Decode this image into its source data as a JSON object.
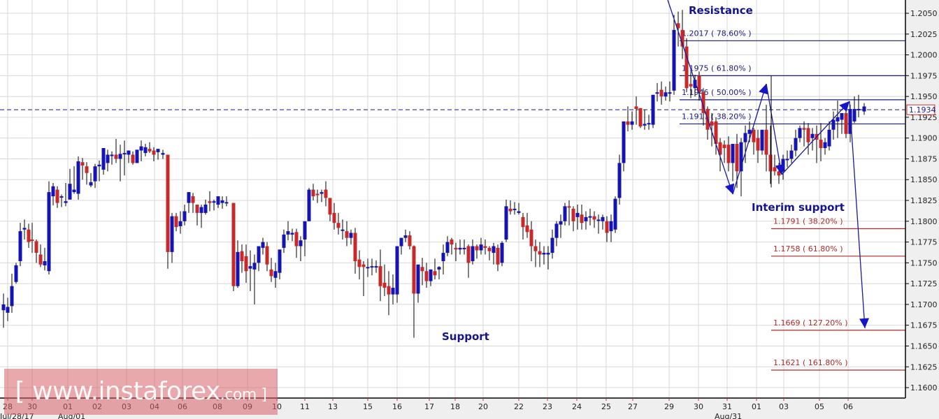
{
  "chart_data": {
    "type": "candlestick",
    "title": "",
    "instrument_hint": "Daily candlestick chart with Fibonacci retracement/extension levels",
    "xlabel": "",
    "ylabel": "",
    "ylim": [
      1.16,
      1.205
    ],
    "yticks": [
      "1.2050",
      "1.2025",
      "1.2000",
      "1.1975",
      "1.1950",
      "1.1925",
      "1.1900",
      "1.1875",
      "1.1850",
      "1.1825",
      "1.1800",
      "1.1775",
      "1.1750",
      "1.1725",
      "1.1700",
      "1.1675",
      "1.1650",
      "1.1625",
      "1.1600"
    ],
    "xticks": [
      {
        "label": "28",
        "x": 11
      },
      {
        "label": "30",
        "x": 46
      },
      {
        "label": "01",
        "x": 97
      },
      {
        "label": "02",
        "x": 139
      },
      {
        "label": "03",
        "x": 181
      },
      {
        "label": "04",
        "x": 221
      },
      {
        "label": "06",
        "x": 261
      },
      {
        "label": "08",
        "x": 311
      },
      {
        "label": "09",
        "x": 354
      },
      {
        "label": "10",
        "x": 396
      },
      {
        "label": "11",
        "x": 436
      },
      {
        "label": "13",
        "x": 476
      },
      {
        "label": "15",
        "x": 526
      },
      {
        "label": "16",
        "x": 568
      },
      {
        "label": "17",
        "x": 614
      },
      {
        "label": "18",
        "x": 651
      },
      {
        "label": "20",
        "x": 691
      },
      {
        "label": "22",
        "x": 742
      },
      {
        "label": "23",
        "x": 783
      },
      {
        "label": "24",
        "x": 825
      },
      {
        "label": "25",
        "x": 867
      },
      {
        "label": "27",
        "x": 905
      },
      {
        "label": "29",
        "x": 957
      },
      {
        "label": "30",
        "x": 999
      },
      {
        "label": "31",
        "x": 1040
      },
      {
        "label": "01",
        "x": 1082
      },
      {
        "label": "03",
        "x": 1121
      },
      {
        "label": "05",
        "x": 1172
      },
      {
        "label": "06",
        "x": 1213
      }
    ],
    "month_labels": [
      {
        "label": "Jul/28/17",
        "x": 0
      },
      {
        "label": "Aug/01",
        "x": 83
      },
      {
        "label": "Aug/31",
        "x": 1022
      }
    ],
    "current_price": {
      "value": "1.1934",
      "price": 1.1934
    },
    "fib_levels_resistance": [
      {
        "price": 1.2017,
        "label": "1.2017 ( 78.60% )"
      },
      {
        "price": 1.1975,
        "label": "1.1975 ( 61.80% )"
      },
      {
        "price": 1.1946,
        "label": "1.1946 ( 50.00% )"
      },
      {
        "price": 1.1917,
        "label": "1.1917 ( 38.20% )"
      }
    ],
    "fib_levels_support": [
      {
        "price": 1.1791,
        "label": "1.1791 ( 38.20% )"
      },
      {
        "price": 1.1758,
        "label": "1.1758 ( 61.80% )"
      },
      {
        "price": 1.1669,
        "label": "1.1669 ( 127.20% )"
      },
      {
        "price": 1.1621,
        "label": "1.1621 ( 161.80% )"
      }
    ],
    "annotations": [
      {
        "text": "Resistance",
        "x": 985,
        "y": 20
      },
      {
        "text": "Interim support",
        "x": 1075,
        "y": 302
      },
      {
        "text": "Support",
        "x": 632,
        "y": 487
      }
    ],
    "candles": [
      [
        5,
        1.1693,
        1.1713,
        1.17,
        1.1672
      ],
      [
        11,
        1.169,
        1.1708,
        1.1697,
        1.168
      ],
      [
        17,
        1.1698,
        1.1737,
        1.1722,
        1.169
      ],
      [
        23,
        1.1727,
        1.175,
        1.1747,
        1.1725
      ],
      [
        29,
        1.1752,
        1.1798,
        1.1788,
        1.1746
      ],
      [
        35,
        1.179,
        1.1802,
        1.1792,
        1.1778
      ],
      [
        41,
        1.179,
        1.1797,
        1.1775,
        1.1768
      ],
      [
        46,
        1.1778,
        1.1798,
        1.1777,
        1.1762
      ],
      [
        52,
        1.1776,
        1.1778,
        1.1762,
        1.175
      ],
      [
        58,
        1.176,
        1.1772,
        1.1748,
        1.1745
      ],
      [
        64,
        1.1747,
        1.1768,
        1.1752,
        1.1741
      ],
      [
        70,
        1.174,
        1.1848,
        1.1835,
        1.1736
      ],
      [
        76,
        1.183,
        1.1846,
        1.1842,
        1.1819
      ],
      [
        82,
        1.1838,
        1.1842,
        1.1822,
        1.1816
      ],
      [
        88,
        1.183,
        1.1832,
        1.183,
        1.1817
      ],
      [
        94,
        1.1822,
        1.1846,
        1.1824,
        1.1818
      ],
      [
        100,
        1.1826,
        1.1863,
        1.1845,
        1.1836
      ],
      [
        106,
        1.1835,
        1.1866,
        1.1838,
        1.1833
      ],
      [
        112,
        1.1833,
        1.1878,
        1.1872,
        1.1826
      ],
      [
        118,
        1.1871,
        1.1876,
        1.1867,
        1.185
      ],
      [
        124,
        1.1866,
        1.1871,
        1.1858,
        1.1844
      ],
      [
        130,
        1.1843,
        1.1858,
        1.1847,
        1.1841
      ],
      [
        136,
        1.1848,
        1.1869,
        1.1866,
        1.184
      ],
      [
        142,
        1.1866,
        1.1873,
        1.1868,
        1.1848
      ],
      [
        148,
        1.1862,
        1.1882,
        1.1888,
        1.1856
      ],
      [
        154,
        1.187,
        1.1886,
        1.188,
        1.186
      ],
      [
        160,
        1.188,
        1.1884,
        1.188,
        1.1868
      ],
      [
        166,
        1.188,
        1.1899,
        1.1875,
        1.187
      ],
      [
        172,
        1.1875,
        1.1892,
        1.1881,
        1.1848
      ],
      [
        178,
        1.1882,
        1.1897,
        1.1882,
        1.1855
      ],
      [
        184,
        1.188,
        1.1885,
        1.1885,
        1.187
      ],
      [
        190,
        1.188,
        1.1884,
        1.187,
        1.1868
      ],
      [
        196,
        1.187,
        1.1884,
        1.1886,
        1.187
      ],
      [
        202,
        1.1885,
        1.1897,
        1.189,
        1.1872
      ],
      [
        208,
        1.1882,
        1.1893,
        1.1889,
        1.1878
      ],
      [
        214,
        1.1887,
        1.1895,
        1.1884,
        1.1882
      ],
      [
        220,
        1.1885,
        1.1889,
        1.188,
        1.1872
      ],
      [
        226,
        1.1883,
        1.1887,
        1.1887,
        1.1874
      ],
      [
        233,
        1.188,
        1.1886,
        1.1882,
        1.1875
      ],
      [
        240,
        1.188,
        1.188,
        1.1763,
        1.1743
      ],
      [
        246,
        1.1763,
        1.181,
        1.1806,
        1.175
      ],
      [
        252,
        1.1806,
        1.181,
        1.1793,
        1.1788
      ],
      [
        258,
        1.1794,
        1.1812,
        1.18,
        1.1785
      ],
      [
        264,
        1.18,
        1.182,
        1.1812,
        1.1795
      ],
      [
        270,
        1.1822,
        1.1834,
        1.1835,
        1.181
      ],
      [
        276,
        1.183,
        1.1834,
        1.1822,
        1.181
      ],
      [
        282,
        1.182,
        1.1818,
        1.181,
        1.1795
      ],
      [
        288,
        1.181,
        1.182,
        1.1817,
        1.1792
      ],
      [
        294,
        1.181,
        1.1826,
        1.182,
        1.1808
      ],
      [
        300,
        1.1824,
        1.1836,
        1.1822,
        1.1812
      ],
      [
        306,
        1.1824,
        1.1826,
        1.1824,
        1.1813
      ],
      [
        312,
        1.182,
        1.1829,
        1.183,
        1.1816
      ],
      [
        318,
        1.1822,
        1.183,
        1.1825,
        1.1815
      ],
      [
        324,
        1.1822,
        1.183,
        1.1823,
        1.1818
      ],
      [
        334,
        1.1822,
        1.1822,
        1.1722,
        1.1716
      ],
      [
        340,
        1.1722,
        1.1777,
        1.1763,
        1.172
      ],
      [
        346,
        1.1764,
        1.1772,
        1.1752,
        1.1738
      ],
      [
        352,
        1.1758,
        1.1772,
        1.174,
        1.1726
      ],
      [
        358,
        1.1743,
        1.1765,
        1.1746,
        1.1716
      ],
      [
        364,
        1.1742,
        1.176,
        1.175,
        1.17
      ],
      [
        370,
        1.175,
        1.1766,
        1.177,
        1.174
      ],
      [
        376,
        1.1768,
        1.178,
        1.1775,
        1.176
      ],
      [
        382,
        1.177,
        1.1775,
        1.1748,
        1.174
      ],
      [
        388,
        1.1742,
        1.1756,
        1.1734,
        1.1727
      ],
      [
        394,
        1.1732,
        1.175,
        1.174,
        1.172
      ],
      [
        400,
        1.1738,
        1.1761,
        1.1766,
        1.173
      ],
      [
        406,
        1.1768,
        1.179,
        1.1784,
        1.1762
      ],
      [
        412,
        1.1784,
        1.18,
        1.1788,
        1.1777
      ],
      [
        418,
        1.1784,
        1.1791,
        1.1786,
        1.1776
      ],
      [
        424,
        1.1787,
        1.1791,
        1.177,
        1.1756
      ],
      [
        430,
        1.177,
        1.1782,
        1.1777,
        1.1752
      ],
      [
        436,
        1.1778,
        1.1784,
        1.18,
        1.1758
      ],
      [
        442,
        1.18,
        1.184,
        1.1838,
        1.18
      ],
      [
        448,
        1.1838,
        1.1845,
        1.183,
        1.1825
      ],
      [
        454,
        1.1833,
        1.1838,
        1.1832,
        1.1822
      ],
      [
        460,
        1.1833,
        1.1838,
        1.1835,
        1.1823
      ],
      [
        466,
        1.1838,
        1.1848,
        1.1828,
        1.1818
      ],
      [
        472,
        1.1828,
        1.1828,
        1.1808,
        1.18
      ],
      [
        478,
        1.181,
        1.1822,
        1.1798,
        1.179
      ],
      [
        484,
        1.1798,
        1.181,
        1.1792,
        1.1784
      ],
      [
        490,
        1.179,
        1.1802,
        1.179,
        1.1778
      ],
      [
        496,
        1.1788,
        1.18,
        1.178,
        1.177
      ],
      [
        502,
        1.178,
        1.179,
        1.1786,
        1.1772
      ],
      [
        508,
        1.1786,
        1.1792,
        1.1752,
        1.1737
      ],
      [
        514,
        1.1754,
        1.1765,
        1.1745,
        1.173
      ],
      [
        520,
        1.1748,
        1.1752,
        1.1745,
        1.171
      ],
      [
        526,
        1.1745,
        1.1755,
        1.1745,
        1.1733
      ],
      [
        532,
        1.1745,
        1.1755,
        1.1746,
        1.1735
      ],
      [
        538,
        1.1745,
        1.1753,
        1.1746,
        1.1738
      ],
      [
        544,
        1.1746,
        1.1766,
        1.1722,
        1.1704
      ],
      [
        550,
        1.1726,
        1.1748,
        1.172,
        1.171
      ],
      [
        556,
        1.1722,
        1.174,
        1.1712,
        1.1687
      ],
      [
        562,
        1.1712,
        1.1736,
        1.172,
        1.17
      ],
      [
        568,
        1.1712,
        1.1735,
        1.177,
        1.1702
      ],
      [
        574,
        1.177,
        1.178,
        1.178,
        1.176
      ],
      [
        580,
        1.178,
        1.179,
        1.1783,
        1.1775
      ],
      [
        586,
        1.1783,
        1.1788,
        1.177,
        1.1766
      ],
      [
        592,
        1.177,
        1.1771,
        1.1713,
        1.166
      ],
      [
        598,
        1.1713,
        1.1734,
        1.1748,
        1.1702
      ],
      [
        604,
        1.1745,
        1.1756,
        1.174,
        1.1723
      ],
      [
        610,
        1.174,
        1.175,
        1.1728,
        1.172
      ],
      [
        616,
        1.1728,
        1.1742,
        1.1742,
        1.1722
      ],
      [
        622,
        1.174,
        1.1755,
        1.1735,
        1.173
      ],
      [
        628,
        1.1742,
        1.1746,
        1.1745,
        1.173
      ],
      [
        634,
        1.1752,
        1.1772,
        1.1762,
        1.1736
      ],
      [
        640,
        1.1762,
        1.1782,
        1.1775,
        1.1758
      ],
      [
        646,
        1.1778,
        1.178,
        1.1772,
        1.176
      ],
      [
        652,
        1.1768,
        1.1774,
        1.1766,
        1.1752
      ],
      [
        658,
        1.1766,
        1.1778,
        1.1768,
        1.176
      ],
      [
        664,
        1.1768,
        1.1778,
        1.1768,
        1.176
      ],
      [
        670,
        1.177,
        1.1772,
        1.175,
        1.1732
      ]
    ],
    "legend": "none",
    "grid": true
  },
  "watermark": {
    "text": "[ www.instaforex",
    "suffix": ".com ]"
  },
  "colors": {
    "bull": "#1414b4",
    "bear": "#c82828",
    "fib_resistance": "#1a1a78",
    "fib_support": "#b42828",
    "annotation": "#14148c",
    "grid": "#d8d8d8",
    "plot_bg": "#ffffff",
    "axis_bg": "#efefef"
  }
}
